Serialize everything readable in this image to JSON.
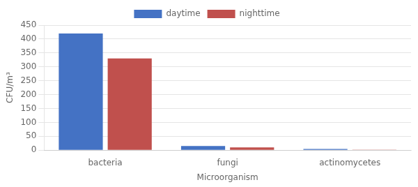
{
  "chart_data": {
    "type": "bar",
    "categories": [
      "bacteria",
      "fungi",
      "actinomycetes"
    ],
    "series": [
      {
        "name": "daytime",
        "color": "#4472C4",
        "values": [
          420,
          15,
          4
        ]
      },
      {
        "name": "nighttime",
        "color": "#C0504D",
        "values": [
          330,
          10,
          2
        ]
      }
    ],
    "xlabel": "Microorganism",
    "ylabel": "CFU/m³",
    "ylim": [
      0,
      450
    ],
    "yticks": [
      0,
      50,
      100,
      150,
      200,
      250,
      300,
      350,
      400,
      450
    ],
    "grid": true,
    "legend": "top"
  }
}
